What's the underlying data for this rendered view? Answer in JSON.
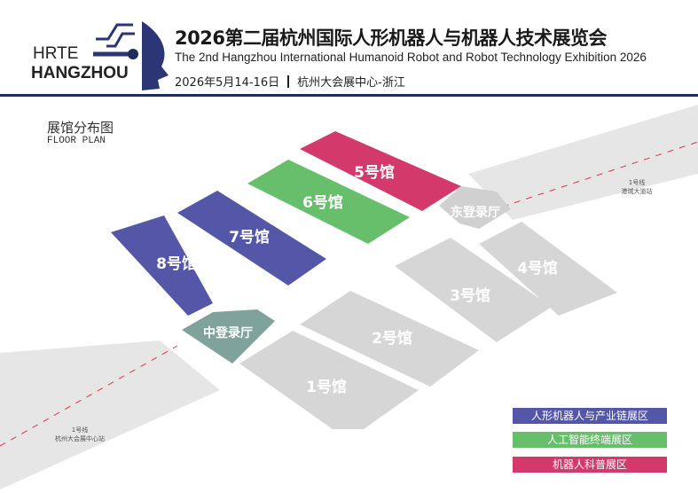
{
  "header": {
    "logo_line1": "HRTE",
    "logo_line2": "HANGZHOU",
    "title": "2026第二届杭州国际人形机器人与机器人技术展览会",
    "subtitle": "The 2nd Hangzhou International Humanoid Robot and Robot Technology Exhibition 2026",
    "date": "2026年5月14-16日",
    "venue": "杭州大会展中心-浙江"
  },
  "floor_plan": {
    "title_cn": "展馆分布图",
    "title_en": "FLOOR PLAN"
  },
  "halls": {
    "h1": "1号馆",
    "h2": "2号馆",
    "h3": "3号馆",
    "h4": "4号馆",
    "h5": "5号馆",
    "h6": "6号馆",
    "h7": "7号馆",
    "h8": "8号馆",
    "east_lobby": "东登录厅",
    "central_lobby": "中登录厅"
  },
  "metro": {
    "ne_line": "1号线",
    "ne_station": "港城大道站",
    "sw_line": "1号线",
    "sw_station": "杭州大会展中心站"
  },
  "legend": [
    {
      "label": "人形机器人与产业链展区",
      "color": "#5457a7"
    },
    {
      "label": "人工智能终端展区",
      "color": "#67bf6b"
    },
    {
      "label": "机器人科普展区",
      "color": "#d33a6b"
    }
  ]
}
